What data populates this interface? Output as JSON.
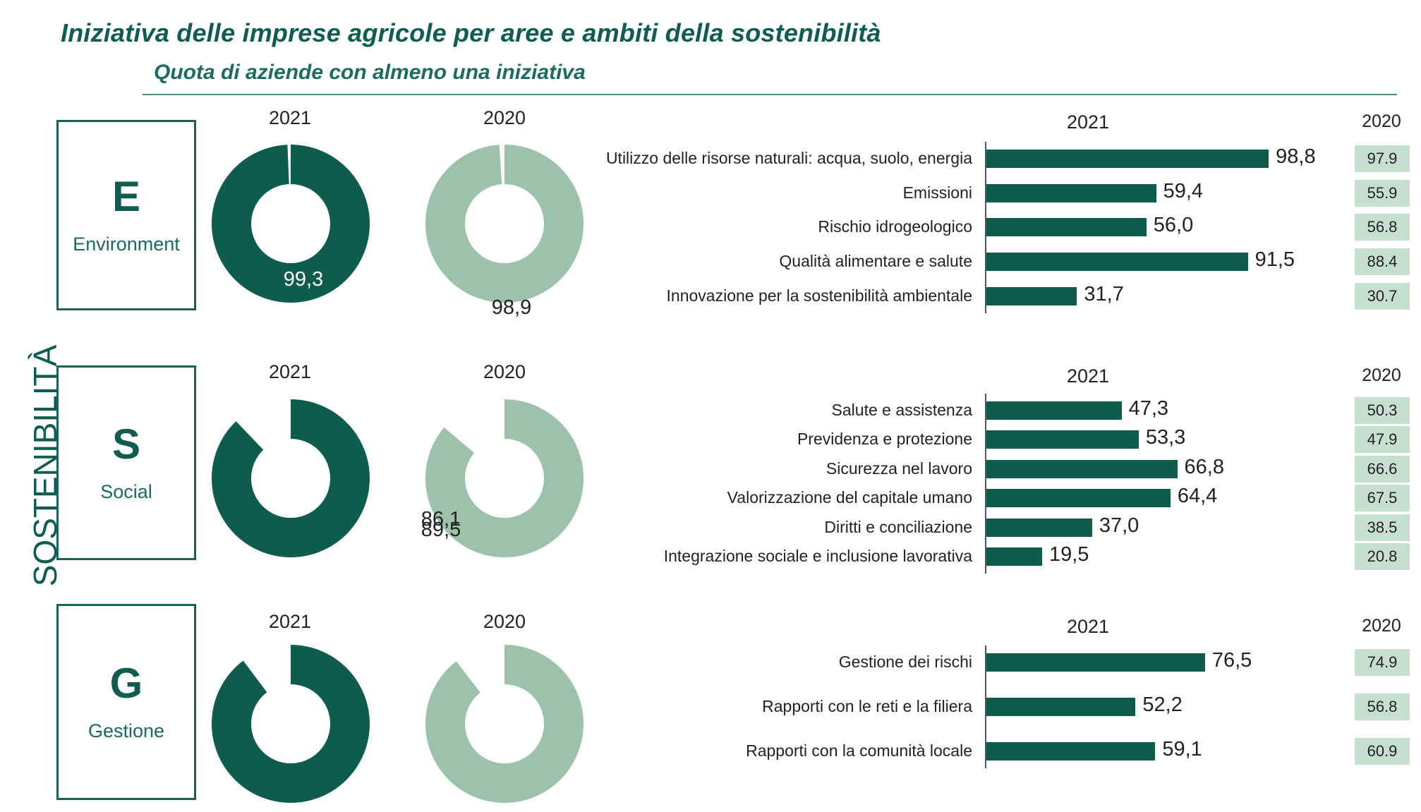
{
  "title": "Iniziativa delle imprese agricole per aree e ambiti della sostenibilità",
  "subtitle": "Quota di aziende con almeno una iniziativa",
  "side_label": "SOSTENIBILITÀ",
  "colors": {
    "dark": "#0d5c4e",
    "light": "#9cc3a9",
    "compare_box": "#c7dfcf",
    "text": "#0f5c50"
  },
  "sections": [
    {
      "letter": "E",
      "name": "Environment",
      "donut_2021_label": "2021",
      "donut_2021_value": "99,3",
      "donut_2020_label": "2020",
      "donut_2020_value": "98,9",
      "bar_header": "2021",
      "compare_header": "2020",
      "items": [
        {
          "label": "Utilizzo delle risorse naturali: acqua, suolo, energia",
          "value": "98,8",
          "prev": "97.9"
        },
        {
          "label": "Emissioni",
          "value": "59,4",
          "prev": "55.9"
        },
        {
          "label": "Rischio idrogeologico",
          "value": "56,0",
          "prev": "56.8"
        },
        {
          "label": "Qualità alimentare e salute",
          "value": "91,5",
          "prev": "88.4"
        },
        {
          "label": "Innovazione per la sostenibilità ambientale",
          "value": "31,7",
          "prev": "30.7"
        }
      ]
    },
    {
      "letter": "S",
      "name": "Social",
      "donut_2021_label": "2021",
      "donut_2021_value": "87,8",
      "donut_2020_label": "2020",
      "donut_2020_value": "86,1",
      "bar_header": "2021",
      "compare_header": "2020",
      "items": [
        {
          "label": "Salute e assistenza",
          "value": "47,3",
          "prev": "50.3"
        },
        {
          "label": "Previdenza e protezione",
          "value": "53,3",
          "prev": "47.9"
        },
        {
          "label": "Sicurezza nel lavoro",
          "value": "66,8",
          "prev": "66.6"
        },
        {
          "label": "Valorizzazione del capitale umano",
          "value": "64,4",
          "prev": "67.5"
        },
        {
          "label": "Diritti e conciliazione",
          "value": "37,0",
          "prev": "38.5"
        },
        {
          "label": "Integrazione sociale e inclusione lavorativa",
          "value": "19,5",
          "prev": "20.8"
        }
      ]
    },
    {
      "letter": "G",
      "name": "Gestione",
      "donut_2021_label": "2021",
      "donut_2021_value": "89,7",
      "donut_2020_label": "2020",
      "donut_2020_value": "89,5",
      "bar_header": "2021",
      "compare_header": "2020",
      "items": [
        {
          "label": "Gestione dei rischi",
          "value": "76,5",
          "prev": "74.9"
        },
        {
          "label": "Rapporti con le reti e la filiera",
          "value": "52,2",
          "prev": "56.8"
        },
        {
          "label": "Rapporti con la comunità locale",
          "value": "59,1",
          "prev": "60.9"
        }
      ]
    }
  ],
  "chart_data": [
    {
      "type": "pie",
      "title": "Environment 2021",
      "values": [
        99.3
      ]
    },
    {
      "type": "pie",
      "title": "Environment 2020",
      "values": [
        98.9
      ]
    },
    {
      "type": "bar",
      "title": "Environment",
      "categories": [
        "Utilizzo delle risorse naturali: acqua, suolo, energia",
        "Emissioni",
        "Rischio idrogeologico",
        "Qualità alimentare e salute",
        "Innovazione per la sostenibilità ambientale"
      ],
      "series": [
        {
          "name": "2021",
          "values": [
            98.8,
            59.4,
            56.0,
            91.5,
            31.7
          ]
        },
        {
          "name": "2020",
          "values": [
            97.9,
            55.9,
            56.8,
            88.4,
            30.7
          ]
        }
      ],
      "xlim": [
        0,
        100
      ]
    },
    {
      "type": "pie",
      "title": "Social 2021",
      "values": [
        87.8
      ]
    },
    {
      "type": "pie",
      "title": "Social 2020",
      "values": [
        86.1
      ]
    },
    {
      "type": "bar",
      "title": "Social",
      "categories": [
        "Salute e assistenza",
        "Previdenza e protezione",
        "Sicurezza nel lavoro",
        "Valorizzazione del capitale umano",
        "Diritti e conciliazione",
        "Integrazione sociale e inclusione lavorativa"
      ],
      "series": [
        {
          "name": "2021",
          "values": [
            47.3,
            53.3,
            66.8,
            64.4,
            37.0,
            19.5
          ]
        },
        {
          "name": "2020",
          "values": [
            50.3,
            47.9,
            66.6,
            67.5,
            38.5,
            20.8
          ]
        }
      ],
      "xlim": [
        0,
        100
      ]
    },
    {
      "type": "pie",
      "title": "Gestione 2021",
      "values": [
        89.7
      ]
    },
    {
      "type": "pie",
      "title": "Gestione 2020",
      "values": [
        89.5
      ]
    },
    {
      "type": "bar",
      "title": "Gestione",
      "categories": [
        "Gestione dei rischi",
        "Rapporti con le reti e la filiera",
        "Rapporti con la comunità locale"
      ],
      "series": [
        {
          "name": "2021",
          "values": [
            76.5,
            52.2,
            59.1
          ]
        },
        {
          "name": "2020",
          "values": [
            74.9,
            56.8,
            60.9
          ]
        }
      ],
      "xlim": [
        0,
        100
      ]
    }
  ]
}
